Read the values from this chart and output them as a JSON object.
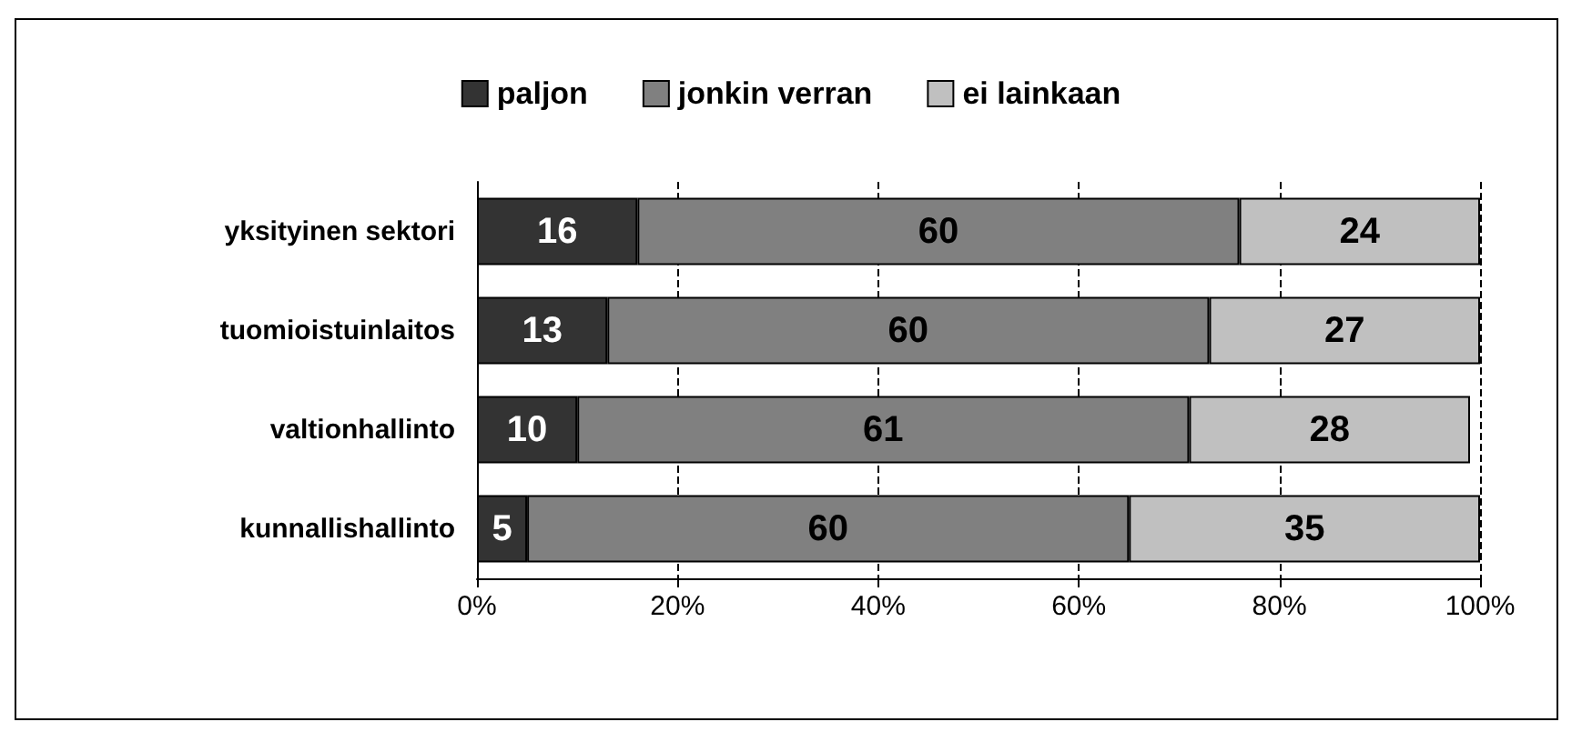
{
  "chart_data": {
    "type": "bar",
    "orientation": "horizontal",
    "stacked": true,
    "categories": [
      "yksityinen sektori",
      "tuomioistuinlaitos",
      "valtionhallinto",
      "kunnallishallinto"
    ],
    "series": [
      {
        "name": "paljon",
        "color": "#333333",
        "values": [
          16,
          13,
          10,
          5
        ]
      },
      {
        "name": "jonkin verran",
        "color": "#808080",
        "values": [
          60,
          60,
          61,
          60
        ]
      },
      {
        "name": "ei lainkaan",
        "color": "#c0c0c0",
        "values": [
          24,
          27,
          28,
          35
        ]
      }
    ],
    "xlim": [
      0,
      100
    ],
    "xticks": [
      {
        "value": 0,
        "label": "0%"
      },
      {
        "value": 20,
        "label": "20%"
      },
      {
        "value": 40,
        "label": "40%"
      },
      {
        "value": 60,
        "label": "60%"
      },
      {
        "value": 80,
        "label": "80%"
      },
      {
        "value": 100,
        "label": "100%"
      }
    ],
    "grid": "x",
    "legend": "top",
    "data_labels": true
  }
}
